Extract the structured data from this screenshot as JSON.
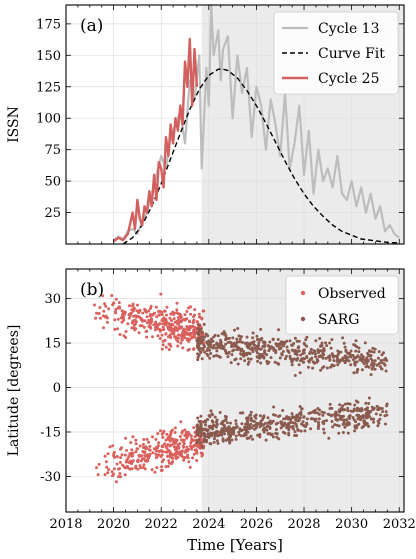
{
  "x_axis": {
    "label": "Time [Years]",
    "ticks": [
      "2018",
      "2020",
      "2022",
      "2024",
      "2026",
      "2028",
      "2030",
      "2032"
    ],
    "range": [
      2018,
      2032.2
    ]
  },
  "colors": {
    "cycle13": "#bdbdbd",
    "cycle25": "#d1605e",
    "fit": "#000000",
    "observed": "#d9605c",
    "sarg": "#8b5a4f",
    "shade": "#ebebeb"
  },
  "chart_data": [
    {
      "type": "line",
      "panel_label": "(a)",
      "ylabel": "ISSN",
      "yticks": [
        "25",
        "50",
        "75",
        "100",
        "125",
        "150",
        "175"
      ],
      "ylim": [
        0,
        190
      ],
      "xlim": [
        2018,
        2032.2
      ],
      "shaded_from": 2023.7,
      "legend": {
        "placement": "top-right",
        "entries": [
          "Cycle 13",
          "Curve Fit",
          "Cycle 25"
        ]
      },
      "series": [
        {
          "name": "Cycle 13",
          "style": "solid-gray",
          "x": [
            2020.0,
            2020.2,
            2020.4,
            2020.6,
            2020.8,
            2021.0,
            2021.2,
            2021.4,
            2021.6,
            2021.8,
            2022.0,
            2022.2,
            2022.4,
            2022.6,
            2022.8,
            2023.0,
            2023.2,
            2023.4,
            2023.6,
            2023.7,
            2023.9,
            2024.0,
            2024.1,
            2024.2,
            2024.3,
            2024.4,
            2024.5,
            2024.6,
            2024.8,
            2025.0,
            2025.2,
            2025.4,
            2025.6,
            2025.8,
            2026.0,
            2026.2,
            2026.4,
            2026.6,
            2026.8,
            2027.0,
            2027.2,
            2027.4,
            2027.6,
            2027.8,
            2028.0,
            2028.2,
            2028.4,
            2028.6,
            2028.8,
            2029.0,
            2029.2,
            2029.4,
            2029.6,
            2029.8,
            2030.0,
            2030.2,
            2030.4,
            2030.6,
            2030.8,
            2031.0,
            2031.2,
            2031.4,
            2031.6,
            2031.8,
            2032.0
          ],
          "y": [
            3,
            6,
            4,
            10,
            12,
            8,
            18,
            25,
            40,
            55,
            70,
            60,
            85,
            95,
            105,
            80,
            130,
            115,
            150,
            60,
            140,
            110,
            190,
            150,
            160,
            170,
            130,
            155,
            165,
            100,
            150,
            120,
            140,
            85,
            125,
            110,
            75,
            115,
            95,
            70,
            120,
            60,
            80,
            110,
            55,
            90,
            40,
            75,
            50,
            60,
            45,
            70,
            40,
            35,
            50,
            30,
            45,
            25,
            40,
            20,
            30,
            10,
            15,
            8,
            5
          ]
        },
        {
          "name": "Curve Fit",
          "style": "dashed-black",
          "x": [
            2020.4,
            2020.8,
            2021.2,
            2021.6,
            2022.0,
            2022.4,
            2022.8,
            2023.2,
            2023.6,
            2024.0,
            2024.4,
            2024.6,
            2024.8,
            2025.2,
            2025.6,
            2026.0,
            2026.4,
            2026.8,
            2027.2,
            2027.6,
            2028.0,
            2028.4,
            2028.8,
            2029.2,
            2029.6,
            2030.0,
            2030.4,
            2030.8,
            2031.2,
            2031.6,
            2032.0
          ],
          "y": [
            0,
            5,
            15,
            30,
            48,
            68,
            88,
            107,
            123,
            134,
            139,
            139,
            138,
            132,
            122,
            110,
            96,
            81,
            66,
            52,
            40,
            30,
            22,
            15,
            10,
            7,
            4,
            3,
            2,
            1,
            1
          ]
        },
        {
          "name": "Cycle 25",
          "style": "solid-red",
          "x": [
            2020.0,
            2020.2,
            2020.4,
            2020.6,
            2020.8,
            2020.9,
            2021.0,
            2021.1,
            2021.2,
            2021.3,
            2021.4,
            2021.5,
            2021.6,
            2021.7,
            2021.8,
            2021.9,
            2022.0,
            2022.1,
            2022.2,
            2022.3,
            2022.4,
            2022.5,
            2022.6,
            2022.7,
            2022.8,
            2022.9,
            2023.0,
            2023.1,
            2023.2,
            2023.3,
            2023.4,
            2023.5
          ],
          "y": [
            2,
            5,
            3,
            8,
            25,
            12,
            35,
            20,
            15,
            30,
            25,
            42,
            30,
            55,
            35,
            65,
            60,
            45,
            85,
            70,
            95,
            80,
            100,
            90,
            110,
            95,
            145,
            125,
            163,
            110,
            155,
            125
          ]
        }
      ]
    },
    {
      "type": "scatter",
      "panel_label": "(b)",
      "ylabel": "Latitude [degrees]",
      "yticks": [
        "30",
        "15",
        "0",
        "-15",
        "-30"
      ],
      "ylim": [
        -42,
        40
      ],
      "xlim": [
        2018,
        2032.2
      ],
      "shaded_from": 2023.7,
      "legend": {
        "placement": "top-right",
        "entries": [
          "Observed",
          "SARG"
        ]
      },
      "series": [
        {
          "name": "Observed",
          "x_range": [
            2019.0,
            2023.8
          ],
          "description_points": 700
        },
        {
          "name": "SARG",
          "x_range": [
            2023.5,
            2031.5
          ],
          "description_points": 1100
        }
      ]
    }
  ]
}
